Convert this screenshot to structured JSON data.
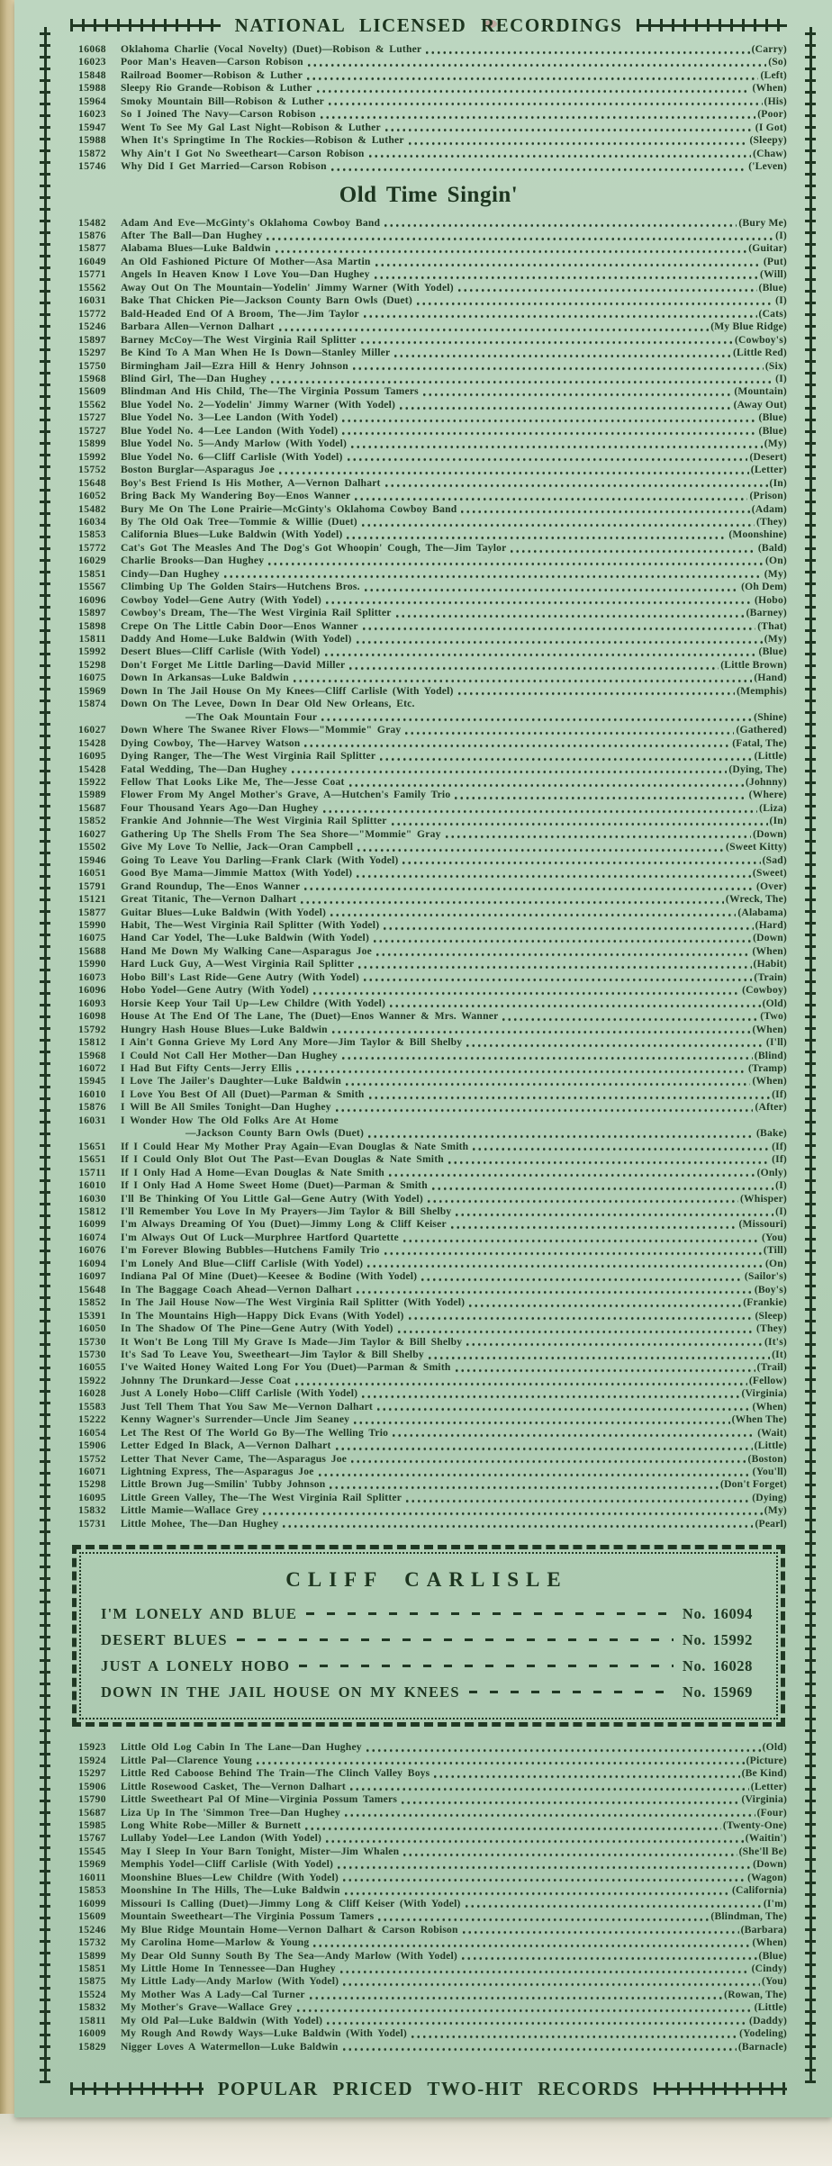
{
  "colors": {
    "paper": "#b4cfb7",
    "ink": "#203823",
    "book_edge": "#cdbd92",
    "backdrop": "#e9e5d8"
  },
  "banner_top": "NATIONAL LICENSED RECORDINGS",
  "banner_bottom": "POPULAR PRICED TWO-HIT RECORDS",
  "national": {
    "items": [
      {
        "no": "16068",
        "title": "Oklahoma Charlie (Vocal Novelty) (Duet)—Robison & Luther",
        "flip": "(Carry)"
      },
      {
        "no": "16023",
        "title": "Poor Man's Heaven—Carson Robison",
        "flip": "(So)"
      },
      {
        "no": "15848",
        "title": "Railroad Boomer—Robison & Luther",
        "flip": "(Left)"
      },
      {
        "no": "15988",
        "title": "Sleepy Rio Grande—Robison & Luther",
        "flip": "(When)"
      },
      {
        "no": "15964",
        "title": "Smoky Mountain Bill—Robison & Luther",
        "flip": "(His)"
      },
      {
        "no": "16023",
        "title": "So I Joined The Navy—Carson Robison",
        "flip": "(Poor)"
      },
      {
        "no": "15947",
        "title": "Went To See My Gal Last Night—Robison & Luther",
        "flip": "(I Got)"
      },
      {
        "no": "15988",
        "title": "When It's Springtime In The Rockies—Robison & Luther",
        "flip": "(Sleepy)"
      },
      {
        "no": "15872",
        "title": "Why Ain't I Got No Sweetheart—Carson Robison",
        "flip": "(Chaw)"
      },
      {
        "no": "15746",
        "title": "Why Did I Get Married—Carson Robison",
        "flip": "('Leven)"
      }
    ]
  },
  "old_time": {
    "title": "Old Time Singin'",
    "items": [
      {
        "no": "15482",
        "title": "Adam And Eve—McGinty's Oklahoma Cowboy Band",
        "flip": "(Bury Me)"
      },
      {
        "no": "15876",
        "title": "After The Ball—Dan Hughey",
        "flip": "(I)"
      },
      {
        "no": "15877",
        "title": "Alabama Blues—Luke Baldwin",
        "flip": "(Guitar)"
      },
      {
        "no": "16049",
        "title": "An Old Fashioned Picture Of Mother—Asa Martin",
        "flip": "(Put)"
      },
      {
        "no": "15771",
        "title": "Angels In Heaven Know I Love You—Dan Hughey",
        "flip": "(Will)"
      },
      {
        "no": "15562",
        "title": "Away Out On The Mountain—Yodelin' Jimmy Warner (With Yodel)",
        "flip": "(Blue)"
      },
      {
        "no": "16031",
        "title": "Bake That Chicken Pie—Jackson County Barn Owls (Duet)",
        "flip": "(I)"
      },
      {
        "no": "15772",
        "title": "Bald-Headed End Of A Broom, The—Jim Taylor",
        "flip": "(Cats)"
      },
      {
        "no": "15246",
        "title": "Barbara Allen—Vernon Dalhart",
        "flip": "(My Blue Ridge)"
      },
      {
        "no": "15897",
        "title": "Barney McCoy—The West Virginia Rail Splitter",
        "flip": "(Cowboy's)"
      },
      {
        "no": "15297",
        "title": "Be Kind To A Man When He Is Down—Stanley Miller",
        "flip": "(Little Red)"
      },
      {
        "no": "15750",
        "title": "Birmingham Jail—Ezra Hill & Henry Johnson",
        "flip": "(Six)"
      },
      {
        "no": "15968",
        "title": "Blind Girl, The—Dan Hughey",
        "flip": "(I)"
      },
      {
        "no": "15609",
        "title": "Blindman And His Child, The—The Virginia Possum Tamers",
        "flip": "(Mountain)"
      },
      {
        "no": "15562",
        "title": "Blue Yodel No. 2—Yodelin' Jimmy Warner (With Yodel)",
        "flip": "(Away Out)"
      },
      {
        "no": "15727",
        "title": "Blue Yodel No. 3—Lee Landon (With Yodel)",
        "flip": "(Blue)"
      },
      {
        "no": "15727",
        "title": "Blue Yodel No. 4—Lee Landon (With Yodel)",
        "flip": "(Blue)"
      },
      {
        "no": "15899",
        "title": "Blue Yodel No. 5—Andy Marlow (With Yodel)",
        "flip": "(My)"
      },
      {
        "no": "15992",
        "title": "Blue Yodel No. 6—Cliff Carlisle (With Yodel)",
        "flip": "(Desert)"
      },
      {
        "no": "15752",
        "title": "Boston Burglar—Asparagus Joe",
        "flip": "(Letter)"
      },
      {
        "no": "15648",
        "title": "Boy's Best Friend Is His Mother, A—Vernon Dalhart",
        "flip": "(In)"
      },
      {
        "no": "16052",
        "title": "Bring Back My Wandering Boy—Enos Wanner",
        "flip": "(Prison)"
      },
      {
        "no": "15482",
        "title": "Bury Me On The Lone Prairie—McGinty's Oklahoma Cowboy Band",
        "flip": "(Adam)"
      },
      {
        "no": "16034",
        "title": "By The Old Oak Tree—Tommie & Willie (Duet)",
        "flip": "(They)"
      },
      {
        "no": "15853",
        "title": "California Blues—Luke Baldwin (With Yodel)",
        "flip": "(Moonshine)"
      },
      {
        "no": "15772",
        "title": "Cat's Got The Measles And The Dog's Got Whoopin' Cough, The—Jim Taylor",
        "flip": "(Bald)"
      },
      {
        "no": "16029",
        "title": "Charlie Brooks—Dan Hughey",
        "flip": "(On)"
      },
      {
        "no": "15851",
        "title": "Cindy—Dan Hughey",
        "flip": "(My)"
      },
      {
        "no": "15567",
        "title": "Climbing Up The Golden Stairs—Hutchens Bros.",
        "flip": "(Oh Dem)"
      },
      {
        "no": "16096",
        "title": "Cowboy Yodel—Gene Autry (With Yodel)",
        "flip": "(Hobo)"
      },
      {
        "no": "15897",
        "title": "Cowboy's Dream, The—The West Virginia Rail Splitter",
        "flip": "(Barney)"
      },
      {
        "no": "15898",
        "title": "Crepe On The Little Cabin Door—Enos Wanner",
        "flip": "(That)"
      },
      {
        "no": "15811",
        "title": "Daddy And Home—Luke Baldwin (With Yodel)",
        "flip": "(My)"
      },
      {
        "no": "15992",
        "title": "Desert Blues—Cliff Carlisle (With Yodel)",
        "flip": "(Blue)"
      },
      {
        "no": "15298",
        "title": "Don't Forget Me Little Darling—David Miller",
        "flip": "(Little Brown)"
      },
      {
        "no": "16075",
        "title": "Down In Arkansas—Luke Baldwin",
        "flip": "(Hand)"
      },
      {
        "no": "15969",
        "title": "Down In The Jail House On My Knees—Cliff Carlisle (With Yodel)",
        "flip": "(Memphis)"
      },
      {
        "no": "15874",
        "title": "Down On The Levee, Down In Dear Old New Orleans, Etc.",
        "line2": "—The Oak Mountain Four",
        "flip": "(Shine)"
      },
      {
        "no": "16027",
        "title": "Down Where The Swanee River Flows—\"Mommie\" Gray",
        "flip": "(Gathered)"
      },
      {
        "no": "15428",
        "title": "Dying Cowboy, The—Harvey Watson",
        "flip": "(Fatal, The)"
      },
      {
        "no": "16095",
        "title": "Dying Ranger, The—The West Virginia Rail Splitter",
        "flip": "(Little)"
      },
      {
        "no": "15428",
        "title": "Fatal Wedding, The—Dan Hughey",
        "flip": "(Dying, The)"
      },
      {
        "no": "15922",
        "title": "Fellow That Looks Like Me, The—Jesse Coat",
        "flip": "(Johnny)"
      },
      {
        "no": "15989",
        "title": "Flower From My Angel Mother's Grave, A—Hutchen's Family Trio",
        "flip": "(Where)"
      },
      {
        "no": "15687",
        "title": "Four Thousand Years Ago—Dan Hughey",
        "flip": "(Liza)"
      },
      {
        "no": "15852",
        "title": "Frankie And Johnnie—The West Virginia Rail Splitter",
        "flip": "(In)"
      },
      {
        "no": "16027",
        "title": "Gathering Up The Shells From The Sea Shore—\"Mommie\" Gray",
        "flip": "(Down)"
      },
      {
        "no": "15502",
        "title": "Give My Love To Nellie, Jack—Oran Campbell",
        "flip": "(Sweet Kitty)"
      },
      {
        "no": "15946",
        "title": "Going To Leave You Darling—Frank Clark (With Yodel)",
        "flip": "(Sad)"
      },
      {
        "no": "16051",
        "title": "Good Bye Mama—Jimmie Mattox (With Yodel)",
        "flip": "(Sweet)"
      },
      {
        "no": "15791",
        "title": "Grand Roundup, The—Enos Wanner",
        "flip": "(Over)"
      },
      {
        "no": "15121",
        "title": "Great Titanic, The—Vernon Dalhart",
        "flip": "(Wreck, The)"
      },
      {
        "no": "15877",
        "title": "Guitar Blues—Luke Baldwin (With Yodel)",
        "flip": "(Alabama)"
      },
      {
        "no": "15990",
        "title": "Habit, The—West Virginia Rail Splitter (With Yodel)",
        "flip": "(Hard)"
      },
      {
        "no": "16075",
        "title": "Hand Car Yodel, The—Luke Baldwin (With Yodel)",
        "flip": "(Down)"
      },
      {
        "no": "15688",
        "title": "Hand Me Down My Walking Cane—Asparagus Joe",
        "flip": "(When)"
      },
      {
        "no": "15990",
        "title": "Hard Luck Guy, A—West Virginia Rail Splitter",
        "flip": "(Habit)"
      },
      {
        "no": "16073",
        "title": "Hobo Bill's Last Ride—Gene Autry (With Yodel)",
        "flip": "(Train)"
      },
      {
        "no": "16096",
        "title": "Hobo Yodel—Gene Autry (With Yodel)",
        "flip": "(Cowboy)"
      },
      {
        "no": "16093",
        "title": "Horsie Keep Your Tail Up—Lew Childre (With Yodel)",
        "flip": "(Old)"
      },
      {
        "no": "16098",
        "title": "House At The End Of The Lane, The (Duet)—Enos Wanner & Mrs. Wanner",
        "flip": "(Two)"
      },
      {
        "no": "15792",
        "title": "Hungry Hash House Blues—Luke Baldwin",
        "flip": "(When)"
      },
      {
        "no": "15812",
        "title": "I Ain't Gonna Grieve My Lord Any More—Jim Taylor & Bill Shelby",
        "flip": "(I'll)"
      },
      {
        "no": "15968",
        "title": "I Could Not Call Her Mother—Dan Hughey",
        "flip": "(Blind)"
      },
      {
        "no": "16072",
        "title": "I Had But Fifty Cents—Jerry Ellis",
        "flip": "(Tramp)"
      },
      {
        "no": "15945",
        "title": "I Love The Jailer's Daughter—Luke Baldwin",
        "flip": "(When)"
      },
      {
        "no": "16010",
        "title": "I Love You Best Of All (Duet)—Parman & Smith",
        "flip": "(If)"
      },
      {
        "no": "15876",
        "title": "I Will Be All Smiles Tonight—Dan Hughey",
        "flip": "(After)"
      },
      {
        "no": "16031",
        "title": "I Wonder How The Old Folks Are At Home",
        "line2": "—Jackson County Barn Owls (Duet)",
        "flip": "(Bake)"
      },
      {
        "no": "15651",
        "title": "If I Could Hear My Mother Pray Again—Evan Douglas & Nate Smith",
        "flip": "(If)"
      },
      {
        "no": "15651",
        "title": "If I Could Only Blot Out The Past—Evan Douglas & Nate Smith",
        "flip": "(If)"
      },
      {
        "no": "15711",
        "title": "If I Only Had A Home—Evan Douglas & Nate Smith",
        "flip": "(Only)"
      },
      {
        "no": "16010",
        "title": "If I Only Had A Home Sweet Home (Duet)—Parman & Smith",
        "flip": "(I)"
      },
      {
        "no": "16030",
        "title": "I'll Be Thinking Of You Little Gal—Gene Autry (With Yodel)",
        "flip": "(Whisper)"
      },
      {
        "no": "15812",
        "title": "I'll Remember You Love In My Prayers—Jim Taylor & Bill Shelby",
        "flip": "(I)"
      },
      {
        "no": "16099",
        "title": "I'm Always Dreaming Of You (Duet)—Jimmy Long & Cliff Keiser",
        "flip": "(Missouri)"
      },
      {
        "no": "16074",
        "title": "I'm Always Out Of Luck—Murphree Hartford Quartette",
        "flip": "(You)"
      },
      {
        "no": "16076",
        "title": "I'm Forever Blowing Bubbles—Hutchens Family Trio",
        "flip": "(Till)"
      },
      {
        "no": "16094",
        "title": "I'm Lonely And Blue—Cliff Carlisle (With Yodel)",
        "flip": "(On)"
      },
      {
        "no": "16097",
        "title": "Indiana Pal Of Mine (Duet)—Keesee & Bodine (With Yodel)",
        "flip": "(Sailor's)"
      },
      {
        "no": "15648",
        "title": "In The Baggage Coach Ahead—Vernon Dalhart",
        "flip": "(Boy's)"
      },
      {
        "no": "15852",
        "title": "In The Jail House Now—The West Virginia Rail Splitter (With Yodel)",
        "flip": "(Frankie)"
      },
      {
        "no": "15391",
        "title": "In The Mountains High—Happy Dick Evans (With Yodel)",
        "flip": "(Sleep)"
      },
      {
        "no": "16050",
        "title": "In The Shadow Of The Pine—Gene Autry (With Yodel)",
        "flip": "(They)"
      },
      {
        "no": "15730",
        "title": "It Won't Be Long Till My Grave Is Made—Jim Taylor & Bill Shelby",
        "flip": "(It's)"
      },
      {
        "no": "15730",
        "title": "It's Sad To Leave You, Sweetheart—Jim Taylor & Bill Shelby",
        "flip": "(It)"
      },
      {
        "no": "16055",
        "title": "I've Waited Honey Waited Long For You (Duet)—Parman & Smith",
        "flip": "(Trail)"
      },
      {
        "no": "15922",
        "title": "Johnny The Drunkard—Jesse Coat",
        "flip": "(Fellow)"
      },
      {
        "no": "16028",
        "title": "Just A Lonely Hobo—Cliff Carlisle (With Yodel)",
        "flip": "(Virginia)"
      },
      {
        "no": "15583",
        "title": "Just Tell Them That You Saw Me—Vernon Dalhart",
        "flip": "(When)"
      },
      {
        "no": "15222",
        "title": "Kenny Wagner's Surrender—Uncle Jim Seaney",
        "flip": "(When The)"
      },
      {
        "no": "16054",
        "title": "Let The Rest Of The World Go By—The Welling Trio",
        "flip": "(Wait)"
      },
      {
        "no": "15906",
        "title": "Letter Edged In Black, A—Vernon Dalhart",
        "flip": "(Little)"
      },
      {
        "no": "15752",
        "title": "Letter That Never Came, The—Asparagus Joe",
        "flip": "(Boston)"
      },
      {
        "no": "16071",
        "title": "Lightning Express, The—Asparagus Joe",
        "flip": "(You'll)"
      },
      {
        "no": "15298",
        "title": "Little Brown Jug—Smilin' Tubby Johnson",
        "flip": "(Don't Forget)"
      },
      {
        "no": "16095",
        "title": "Little Green Valley, The—The West Virginia Rail Splitter",
        "flip": "(Dying)"
      },
      {
        "no": "15832",
        "title": "Little Mamie—Wallace Grey",
        "flip": "(My)"
      },
      {
        "no": "15731",
        "title": "Little Mohee, The—Dan Hughey",
        "flip": "(Pearl)"
      }
    ]
  },
  "carlisle": {
    "title": "CLIFF CARLISLE",
    "items": [
      {
        "title": "I'M LONELY AND BLUE",
        "number": "No. 16094"
      },
      {
        "title": "DESERT BLUES",
        "number": "No. 15992"
      },
      {
        "title": "JUST A LONELY HOBO",
        "number": "No. 16028"
      },
      {
        "title": "DOWN IN THE JAIL HOUSE ON MY KNEES",
        "number": "No. 15969"
      }
    ]
  },
  "continued": {
    "items": [
      {
        "no": "15923",
        "title": "Little Old Log Cabin In The Lane—Dan Hughey",
        "flip": "(Old)"
      },
      {
        "no": "15924",
        "title": "Little Pal—Clarence Young",
        "flip": "(Picture)"
      },
      {
        "no": "15297",
        "title": "Little Red Caboose Behind The Train—The Clinch Valley Boys",
        "flip": "(Be Kind)"
      },
      {
        "no": "15906",
        "title": "Little Rosewood Casket, The—Vernon Dalhart",
        "flip": "(Letter)"
      },
      {
        "no": "15790",
        "title": "Little Sweetheart Pal Of Mine—Virginia Possum Tamers",
        "flip": "(Virginia)"
      },
      {
        "no": "15687",
        "title": "Liza Up In The 'Simmon Tree—Dan Hughey",
        "flip": "(Four)"
      },
      {
        "no": "15985",
        "title": "Long White Robe—Miller & Burnett",
        "flip": "(Twenty-One)"
      },
      {
        "no": "15767",
        "title": "Lullaby Yodel—Lee Landon (With Yodel)",
        "flip": "(Waitin')"
      },
      {
        "no": "15545",
        "title": "May I Sleep In Your Barn Tonight, Mister—Jim Whalen",
        "flip": "(She'll Be)"
      },
      {
        "no": "15969",
        "title": "Memphis Yodel—Cliff Carlisle (With Yodel)",
        "flip": "(Down)"
      },
      {
        "no": "16011",
        "title": "Moonshine Blues—Lew Childre (With Yodel)",
        "flip": "(Wagon)"
      },
      {
        "no": "15853",
        "title": "Moonshine In The Hills, The—Luke Baldwin",
        "flip": "(California)"
      },
      {
        "no": "16099",
        "title": "Missouri Is Calling (Duet)—Jimmy Long & Cliff Keiser (With Yodel)",
        "flip": "(I'm)"
      },
      {
        "no": "15609",
        "title": "Mountain Sweetheart—The Virginia Possum Tamers",
        "flip": "(Blindman, The)"
      },
      {
        "no": "15246",
        "title": "My Blue Ridge Mountain Home—Vernon Dalhart & Carson Robison",
        "flip": "(Barbara)"
      },
      {
        "no": "15732",
        "title": "My Carolina Home—Marlow & Young",
        "flip": "(When)"
      },
      {
        "no": "15899",
        "title": "My Dear Old Sunny South By The Sea—Andy Marlow (With Yodel)",
        "flip": "(Blue)"
      },
      {
        "no": "15851",
        "title": "My Little Home In Tennessee—Dan Hughey",
        "flip": "(Cindy)"
      },
      {
        "no": "15875",
        "title": "My Little Lady—Andy Marlow (With Yodel)",
        "flip": "(You)"
      },
      {
        "no": "15524",
        "title": "My Mother Was A Lady—Cal Turner",
        "flip": "(Rowan, The)"
      },
      {
        "no": "15832",
        "title": "My Mother's Grave—Wallace Grey",
        "flip": "(Little)"
      },
      {
        "no": "15811",
        "title": "My Old Pal—Luke Baldwin (With Yodel)",
        "flip": "(Daddy)"
      },
      {
        "no": "16009",
        "title": "My Rough And Rowdy Ways—Luke Baldwin (With Yodel)",
        "flip": "(Yodeling)"
      },
      {
        "no": "15829",
        "title": "Nigger Loves A Watermellon—Luke Baldwin",
        "flip": "(Barnacle)"
      }
    ]
  }
}
